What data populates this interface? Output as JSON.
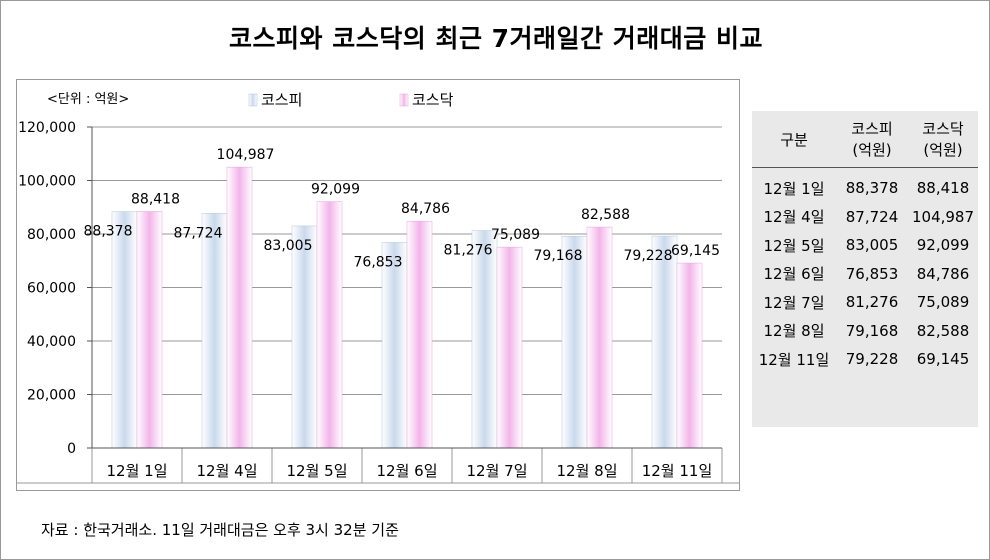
{
  "title": "코스피와 코스닥의 최근 7거래일간 거래대금 비교",
  "source_note": "자료 : 한국거래소. 11일 거래대금은 오후 3시 32분 기준",
  "colors": {
    "kospi": "#c9d9ec",
    "kosdaq": "#f3b4ea",
    "grid": "#999999"
  },
  "chart_data": {
    "type": "bar",
    "unit_label": "<단위 : 억원>",
    "categories": [
      "12월 1일",
      "12월 4일",
      "12월 5일",
      "12월 6일",
      "12월 7일",
      "12월 8일",
      "12월 11일"
    ],
    "series": [
      {
        "name": "코스피",
        "values": [
          88378,
          87724,
          83005,
          76853,
          81276,
          79168,
          79228
        ]
      },
      {
        "name": "코스닥",
        "values": [
          88418,
          104987,
          92099,
          84786,
          75089,
          82588,
          69145
        ]
      }
    ],
    "ylim": [
      0,
      120000
    ],
    "yticks": [
      "0",
      "20,000",
      "40,000",
      "60,000",
      "80,000",
      "100,000",
      "120,000"
    ],
    "grid": true,
    "legend": "top"
  },
  "table": {
    "headers": [
      "구분",
      "코스피\n(억원)",
      "코스닥\n(억원)"
    ],
    "rows": [
      [
        "12월 1일",
        "88,378",
        "88,418"
      ],
      [
        "12월 4일",
        "87,724",
        "104,987"
      ],
      [
        "12월 5일",
        "83,005",
        "92,099"
      ],
      [
        "12월 6일",
        "76,853",
        "84,786"
      ],
      [
        "12월 7일",
        "81,276",
        "75,089"
      ],
      [
        "12월 8일",
        "79,168",
        "82,588"
      ],
      [
        "12월 11일",
        "79,228",
        "69,145"
      ]
    ]
  }
}
